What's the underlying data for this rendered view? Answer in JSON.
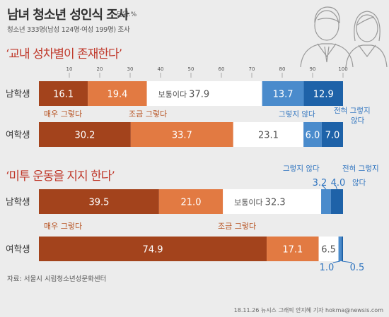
{
  "header": {
    "title": "남녀 청소년 성인식 조사",
    "unit": "단위:%",
    "subtitle": "청소년 333명(남성 124명·여성 199명) 조사"
  },
  "colors": {
    "very_agree": "#a3431c",
    "somewhat_agree": "#e27a42",
    "neutral": "#ffffff",
    "somewhat_disagree": "#4a8bcc",
    "strongly_disagree": "#1e62a8",
    "question_red": "#c0392b",
    "label_brown": "#b85424",
    "label_blue": "#2f74bf"
  },
  "chart_data": [
    {
      "type": "bar",
      "stacked": "horizontal",
      "title": "‘교내 성차별이 존재한다’",
      "categories": [
        "남학생",
        "여학생"
      ],
      "x_ticks": [
        10,
        20,
        30,
        40,
        50,
        60,
        70,
        80,
        90,
        100
      ],
      "xlim": [
        0,
        100
      ],
      "series": [
        {
          "name": "매우 그렇다",
          "values": [
            16.1,
            30.2
          ]
        },
        {
          "name": "조금 그렇다",
          "values": [
            19.4,
            33.7
          ]
        },
        {
          "name": "보통이다",
          "values": [
            37.9,
            23.1
          ]
        },
        {
          "name": "그렇지 않다",
          "values": [
            13.7,
            6.0
          ]
        },
        {
          "name": "전혀 그렇지 않다",
          "values": [
            12.9,
            7.0
          ]
        }
      ],
      "neutral_inline_label": "보통이다",
      "legend_labels": {
        "very_agree": "매우 그렇다",
        "somewhat_agree": "조금 그렇다",
        "somewhat_disagree": "그렇지 않다",
        "strongly_disagree_line1": "전혀 그렇지",
        "strongly_disagree_line2": "않다"
      }
    },
    {
      "type": "bar",
      "stacked": "horizontal",
      "title": "‘미투 운동을 지지 한다’",
      "categories": [
        "남학생",
        "여학생"
      ],
      "xlim": [
        0,
        100
      ],
      "series": [
        {
          "name": "매우 그렇다",
          "values": [
            39.5,
            74.9
          ]
        },
        {
          "name": "조금 그렇다",
          "values": [
            21.0,
            17.1
          ]
        },
        {
          "name": "보통이다",
          "values": [
            32.3,
            6.5
          ]
        },
        {
          "name": "그렇지 않다",
          "values": [
            3.2,
            1.0
          ]
        },
        {
          "name": "전혀 그렇지 않다",
          "values": [
            4.0,
            0.5
          ]
        }
      ],
      "neutral_inline_label": "보통이다",
      "legend_labels": {
        "very_agree": "매우 그렇다",
        "somewhat_agree": "조금 그렇다",
        "somewhat_disagree": "그렇지 않다",
        "strongly_disagree_line1": "전혀 그렇지",
        "strongly_disagree_line2": "않다"
      }
    }
  ],
  "footer": {
    "source": "자료: 서울시 시립청소년성문화센터",
    "credit": "18.11.26 뉴시스 그래픽 안지혜 기자 hokma@newsis.com"
  }
}
